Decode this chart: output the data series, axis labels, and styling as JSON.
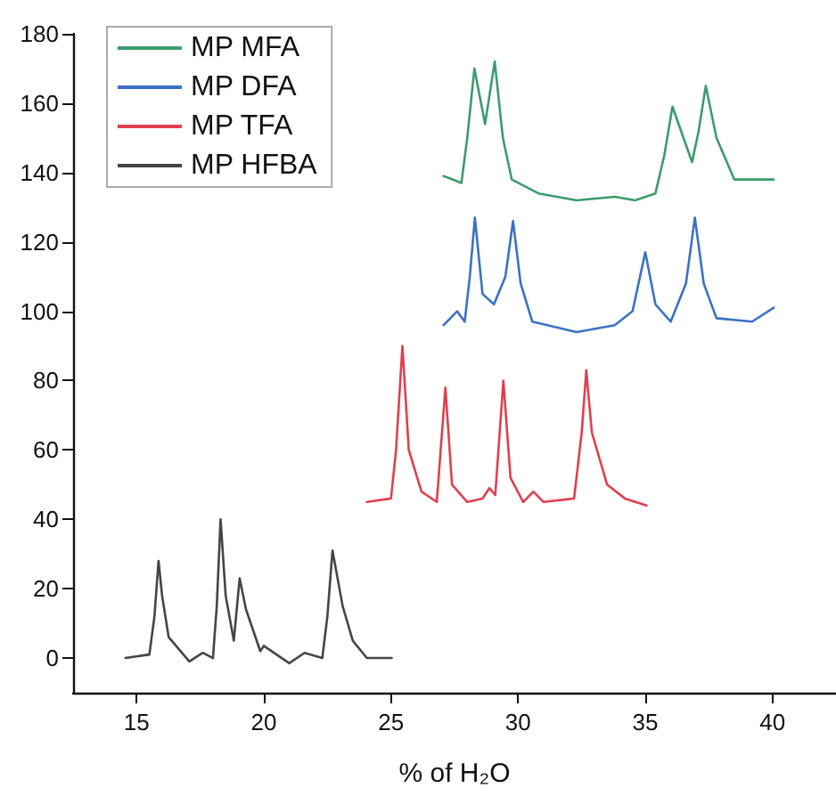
{
  "chart_data": {
    "type": "line",
    "xlabel": "% of H₂O",
    "xlim": [
      12.5,
      42.5
    ],
    "xticks": [
      15,
      20,
      25,
      30,
      35,
      40
    ],
    "ylim": [
      -10,
      180
    ],
    "yticks": [
      0,
      20,
      40,
      60,
      80,
      100,
      120,
      140,
      160,
      180
    ],
    "grid": false,
    "legend": "top left",
    "marker": "none",
    "line_style": "solid",
    "series": [
      {
        "name": "MP MFA",
        "color": "#3a9c6c",
        "x": [
          27.07,
          27.77,
          28.0,
          28.28,
          28.7,
          29.08,
          29.4,
          29.75,
          30.8,
          32.3,
          33.8,
          34.6,
          35.4,
          35.75,
          36.07,
          36.84,
          37.1,
          37.38,
          37.8,
          38.5,
          39.3,
          40.05
        ],
        "values": [
          139,
          137,
          150,
          170,
          154,
          172,
          150,
          138,
          134,
          132,
          133,
          132,
          134,
          145,
          159,
          143,
          152,
          165,
          150,
          138,
          138,
          138
        ]
      },
      {
        "name": "MP DFA",
        "color": "#3b71c6",
        "x": [
          27.07,
          27.6,
          27.9,
          28.1,
          28.3,
          28.6,
          29.05,
          29.5,
          29.8,
          30.1,
          30.56,
          32.3,
          33.8,
          34.5,
          35.0,
          35.4,
          36.0,
          36.6,
          36.95,
          37.3,
          37.8,
          39.2,
          40.05
        ],
        "values": [
          96,
          100,
          97,
          110,
          127,
          105,
          102,
          110,
          126,
          108,
          97,
          94,
          96,
          100,
          117,
          102,
          97,
          108,
          127,
          108,
          98,
          97,
          101
        ]
      },
      {
        "name": "MP TFA",
        "color": "#e0404e",
        "x": [
          24.05,
          25.0,
          25.2,
          25.45,
          25.7,
          26.2,
          26.8,
          27.14,
          27.4,
          28.0,
          28.6,
          28.87,
          29.1,
          29.42,
          29.7,
          30.2,
          30.6,
          31.0,
          32.2,
          32.5,
          32.68,
          32.9,
          33.5,
          34.2,
          35.05
        ],
        "values": [
          45,
          46,
          60,
          90,
          60,
          48,
          45,
          78,
          50,
          45,
          46,
          49,
          47,
          80,
          52,
          45,
          48,
          45,
          46,
          65,
          83,
          65,
          50,
          46,
          44
        ]
      },
      {
        "name": "MP HFBA",
        "color": "#454545",
        "x": [
          14.56,
          15.5,
          15.7,
          15.86,
          16.0,
          16.26,
          17.07,
          17.6,
          18.0,
          18.15,
          18.3,
          18.5,
          18.82,
          19.05,
          19.3,
          19.86,
          20.0,
          21.0,
          21.6,
          22.3,
          22.5,
          22.7,
          23.1,
          23.5,
          24.05,
          25.03
        ],
        "values": [
          0,
          1,
          12,
          28,
          18,
          6,
          -1,
          1.5,
          0,
          15,
          40,
          18,
          5,
          23,
          14,
          2,
          3.5,
          -1.5,
          1.5,
          0,
          12,
          31,
          15,
          5,
          0,
          0
        ]
      }
    ]
  }
}
